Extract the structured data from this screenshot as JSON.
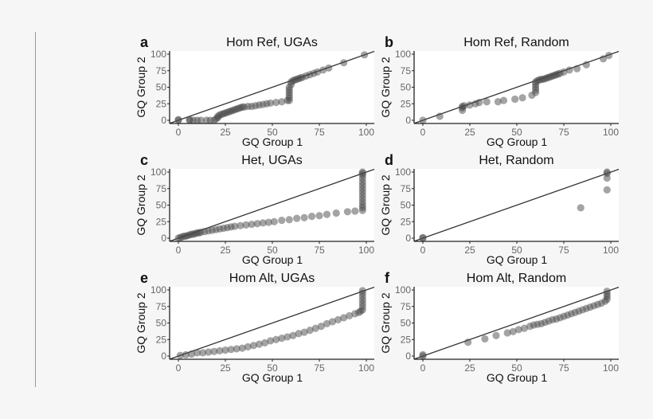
{
  "chart_data": [
    {
      "type": "scatter",
      "panel_letter": "a",
      "title": "Hom Ref, UGAs",
      "xlabel": "GQ Group 1",
      "ylabel": "GQ Group 2",
      "xlim": [
        0,
        100
      ],
      "ylim": [
        0,
        100
      ],
      "xticks": [
        0,
        25,
        50,
        75,
        100
      ],
      "yticks": [
        0,
        25,
        50,
        75,
        100
      ],
      "reference_line": "y=x",
      "grid": false,
      "points": [
        [
          0,
          0
        ],
        [
          0,
          1
        ],
        [
          6,
          0
        ],
        [
          6,
          1
        ],
        [
          8,
          0
        ],
        [
          10,
          0
        ],
        [
          12,
          0
        ],
        [
          15,
          0
        ],
        [
          17,
          0
        ],
        [
          19,
          0
        ],
        [
          20,
          2
        ],
        [
          21,
          4
        ],
        [
          21,
          6
        ],
        [
          22,
          8
        ],
        [
          23,
          9
        ],
        [
          24,
          10
        ],
        [
          25,
          11
        ],
        [
          26,
          12
        ],
        [
          27,
          13
        ],
        [
          28,
          14
        ],
        [
          29,
          15
        ],
        [
          30,
          16
        ],
        [
          31,
          17
        ],
        [
          32,
          18
        ],
        [
          33,
          19
        ],
        [
          34,
          20
        ],
        [
          35,
          20
        ],
        [
          37,
          21
        ],
        [
          39,
          21
        ],
        [
          41,
          22
        ],
        [
          43,
          23
        ],
        [
          45,
          24
        ],
        [
          47,
          25
        ],
        [
          49,
          26
        ],
        [
          52,
          27
        ],
        [
          55,
          28
        ],
        [
          58,
          30
        ],
        [
          59,
          30
        ],
        [
          59,
          34
        ],
        [
          59,
          38
        ],
        [
          59,
          42
        ],
        [
          59,
          46
        ],
        [
          59,
          50
        ],
        [
          60,
          54
        ],
        [
          60,
          58
        ],
        [
          61,
          60
        ],
        [
          62,
          61
        ],
        [
          63,
          62
        ],
        [
          64,
          63
        ],
        [
          65,
          64
        ],
        [
          66,
          65
        ],
        [
          68,
          67
        ],
        [
          70,
          69
        ],
        [
          72,
          71
        ],
        [
          74,
          73
        ],
        [
          77,
          76
        ],
        [
          80,
          79
        ],
        [
          88,
          87
        ],
        [
          99,
          99
        ]
      ]
    },
    {
      "type": "scatter",
      "panel_letter": "b",
      "title": "Hom Ref, Random",
      "xlabel": "GQ Group 1",
      "ylabel": "GQ Group 2",
      "xlim": [
        0,
        100
      ],
      "ylim": [
        0,
        100
      ],
      "xticks": [
        0,
        25,
        50,
        75,
        100
      ],
      "yticks": [
        0,
        25,
        50,
        75,
        100
      ],
      "reference_line": "y=x",
      "grid": false,
      "points": [
        [
          0,
          0
        ],
        [
          9,
          6
        ],
        [
          21,
          15
        ],
        [
          21,
          19
        ],
        [
          21,
          21
        ],
        [
          22,
          22
        ],
        [
          25,
          23
        ],
        [
          28,
          25
        ],
        [
          30,
          27
        ],
        [
          34,
          28
        ],
        [
          40,
          28
        ],
        [
          43,
          30
        ],
        [
          49,
          32
        ],
        [
          53,
          34
        ],
        [
          58,
          38
        ],
        [
          60,
          42
        ],
        [
          60,
          46
        ],
        [
          60,
          50
        ],
        [
          60,
          54
        ],
        [
          60,
          58
        ],
        [
          61,
          60
        ],
        [
          62,
          61
        ],
        [
          63,
          62
        ],
        [
          64,
          62
        ],
        [
          65,
          63
        ],
        [
          66,
          64
        ],
        [
          67,
          65
        ],
        [
          68,
          66
        ],
        [
          69,
          67
        ],
        [
          70,
          68
        ],
        [
          71,
          69
        ],
        [
          72,
          70
        ],
        [
          73,
          71
        ],
        [
          75,
          73
        ],
        [
          78,
          76
        ],
        [
          82,
          78
        ],
        [
          87,
          84
        ],
        [
          96,
          93
        ],
        [
          99,
          98
        ]
      ]
    },
    {
      "type": "scatter",
      "panel_letter": "c",
      "title": "Het, UGAs",
      "xlabel": "GQ Group 1",
      "ylabel": "GQ Group 2",
      "xlim": [
        0,
        100
      ],
      "ylim": [
        0,
        100
      ],
      "xticks": [
        0,
        25,
        50,
        75,
        100
      ],
      "yticks": [
        0,
        25,
        50,
        75,
        100
      ],
      "reference_line": "y=x",
      "grid": false,
      "points": [
        [
          0,
          0
        ],
        [
          1,
          1
        ],
        [
          2,
          2
        ],
        [
          3,
          3
        ],
        [
          4,
          3
        ],
        [
          5,
          4
        ],
        [
          6,
          5
        ],
        [
          7,
          6
        ],
        [
          8,
          6
        ],
        [
          9,
          7
        ],
        [
          10,
          8
        ],
        [
          11,
          8
        ],
        [
          12,
          9
        ],
        [
          14,
          10
        ],
        [
          16,
          11
        ],
        [
          18,
          12
        ],
        [
          20,
          13
        ],
        [
          22,
          14
        ],
        [
          24,
          15
        ],
        [
          26,
          16
        ],
        [
          28,
          17
        ],
        [
          30,
          18
        ],
        [
          33,
          19
        ],
        [
          36,
          20
        ],
        [
          39,
          21
        ],
        [
          42,
          22
        ],
        [
          45,
          23
        ],
        [
          48,
          24
        ],
        [
          51,
          25
        ],
        [
          55,
          27
        ],
        [
          59,
          28
        ],
        [
          63,
          30
        ],
        [
          67,
          31
        ],
        [
          71,
          33
        ],
        [
          75,
          34
        ],
        [
          79,
          36
        ],
        [
          84,
          38
        ],
        [
          90,
          40
        ],
        [
          94,
          41
        ],
        [
          98,
          42
        ],
        [
          98,
          46
        ],
        [
          98,
          50
        ],
        [
          98,
          55
        ],
        [
          98,
          60
        ],
        [
          98,
          65
        ],
        [
          98,
          70
        ],
        [
          98,
          75
        ],
        [
          98,
          80
        ],
        [
          98,
          85
        ],
        [
          98,
          90
        ],
        [
          98,
          95
        ],
        [
          98,
          98
        ],
        [
          98,
          100
        ]
      ]
    },
    {
      "type": "scatter",
      "panel_letter": "d",
      "title": "Het, Random",
      "xlabel": "GQ Group 1",
      "ylabel": "GQ Group 2",
      "xlim": [
        0,
        100
      ],
      "ylim": [
        0,
        100
      ],
      "xticks": [
        0,
        25,
        50,
        75,
        100
      ],
      "yticks": [
        0,
        25,
        50,
        75,
        100
      ],
      "reference_line": "y=x",
      "grid": false,
      "points": [
        [
          0,
          0
        ],
        [
          0,
          1
        ],
        [
          84,
          46
        ],
        [
          98,
          73
        ],
        [
          98,
          91
        ],
        [
          98,
          98
        ],
        [
          98,
          100
        ]
      ]
    },
    {
      "type": "scatter",
      "panel_letter": "e",
      "title": "Hom Alt, UGAs",
      "xlabel": "GQ Group 1",
      "ylabel": "GQ Group 2",
      "xlim": [
        0,
        100
      ],
      "ylim": [
        0,
        100
      ],
      "xticks": [
        0,
        25,
        50,
        75,
        100
      ],
      "yticks": [
        0,
        25,
        50,
        75,
        100
      ],
      "reference_line": "y=x",
      "grid": false,
      "points": [
        [
          1,
          1
        ],
        [
          4,
          2
        ],
        [
          7,
          3
        ],
        [
          10,
          5
        ],
        [
          13,
          5
        ],
        [
          16,
          6
        ],
        [
          19,
          7
        ],
        [
          22,
          8
        ],
        [
          25,
          9
        ],
        [
          28,
          10
        ],
        [
          31,
          11
        ],
        [
          34,
          12
        ],
        [
          37,
          14
        ],
        [
          40,
          16
        ],
        [
          43,
          18
        ],
        [
          46,
          20
        ],
        [
          49,
          23
        ],
        [
          52,
          25
        ],
        [
          55,
          27
        ],
        [
          58,
          29
        ],
        [
          61,
          31
        ],
        [
          64,
          34
        ],
        [
          67,
          36
        ],
        [
          70,
          39
        ],
        [
          73,
          42
        ],
        [
          76,
          45
        ],
        [
          79,
          49
        ],
        [
          82,
          52
        ],
        [
          85,
          55
        ],
        [
          88,
          58
        ],
        [
          91,
          61
        ],
        [
          94,
          64
        ],
        [
          96,
          66
        ],
        [
          97,
          68
        ],
        [
          98,
          70
        ],
        [
          98,
          75
        ],
        [
          98,
          80
        ],
        [
          98,
          85
        ],
        [
          98,
          90
        ],
        [
          98,
          95
        ],
        [
          98,
          99
        ]
      ]
    },
    {
      "type": "scatter",
      "panel_letter": "f",
      "title": "Hom Alt, Random",
      "xlabel": "GQ Group 1",
      "ylabel": "GQ Group 2",
      "xlim": [
        0,
        100
      ],
      "ylim": [
        0,
        100
      ],
      "xticks": [
        0,
        25,
        50,
        75,
        100
      ],
      "yticks": [
        0,
        25,
        50,
        75,
        100
      ],
      "reference_line": "y=x",
      "grid": false,
      "points": [
        [
          0,
          0
        ],
        [
          0,
          2
        ],
        [
          24,
          21
        ],
        [
          33,
          26
        ],
        [
          39,
          31
        ],
        [
          45,
          35
        ],
        [
          48,
          37
        ],
        [
          51,
          40
        ],
        [
          54,
          42
        ],
        [
          57,
          45
        ],
        [
          59,
          47
        ],
        [
          61,
          48
        ],
        [
          63,
          49
        ],
        [
          65,
          51
        ],
        [
          67,
          53
        ],
        [
          69,
          55
        ],
        [
          71,
          56
        ],
        [
          73,
          58
        ],
        [
          75,
          60
        ],
        [
          77,
          62
        ],
        [
          79,
          64
        ],
        [
          81,
          66
        ],
        [
          83,
          68
        ],
        [
          85,
          70
        ],
        [
          87,
          72
        ],
        [
          89,
          74
        ],
        [
          91,
          76
        ],
        [
          93,
          78
        ],
        [
          95,
          80
        ],
        [
          97,
          83
        ],
        [
          98,
          86
        ],
        [
          98,
          90
        ],
        [
          98,
          94
        ],
        [
          98,
          98
        ]
      ]
    }
  ],
  "colors": {
    "point": "#4a4a4a",
    "line": "#333333",
    "background": "#f6f6f6",
    "panel": "#ffffff",
    "tick_text": "#666666"
  }
}
